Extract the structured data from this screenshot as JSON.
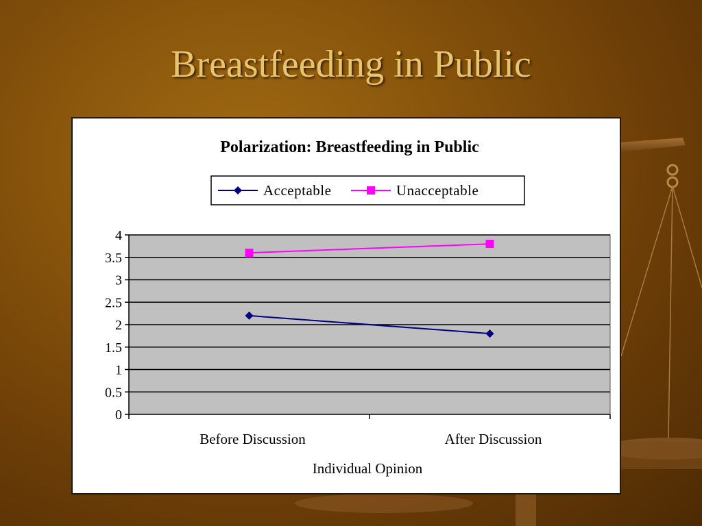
{
  "slide": {
    "title": "Breastfeeding in Public"
  },
  "colors": {
    "background": "#7a4a0a",
    "title": "#e8c46e",
    "plot_area": "#c0c0c0",
    "acceptable": "#000080",
    "unacceptable": "#ff00ff"
  },
  "chart_data": {
    "type": "line",
    "title": "Polarization: Breastfeeding in Public",
    "xlabel": "Individual Opinion",
    "ylabel": "",
    "categories": [
      "Before Discussion",
      "After Discussion"
    ],
    "ylim": [
      0,
      4
    ],
    "yticks": [
      "0",
      "0.5",
      "1",
      "1.5",
      "2",
      "2.5",
      "3",
      "3.5",
      "4"
    ],
    "grid": true,
    "legend_position": "top",
    "series": [
      {
        "name": "Acceptable",
        "values": [
          2.2,
          1.8
        ],
        "color": "#000080",
        "marker": "diamond"
      },
      {
        "name": "Unacceptable",
        "values": [
          3.6,
          3.8
        ],
        "color": "#ff00ff",
        "marker": "square"
      }
    ]
  }
}
